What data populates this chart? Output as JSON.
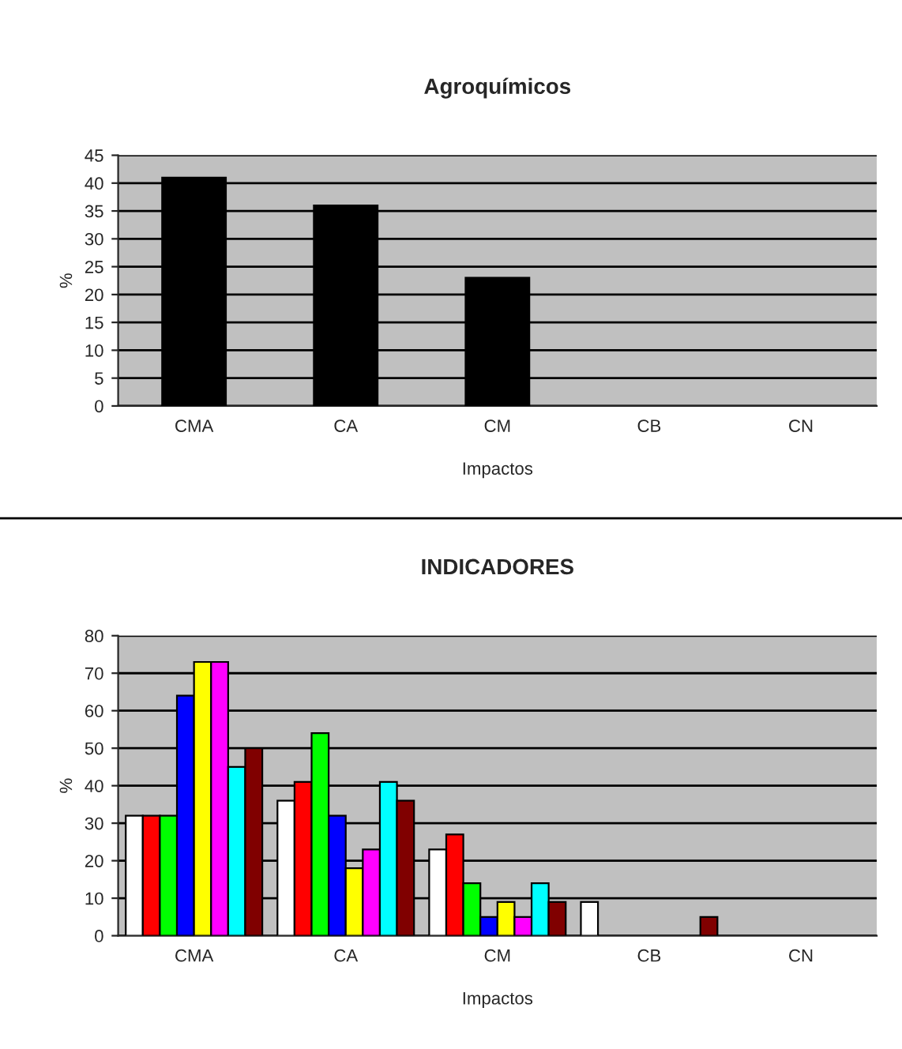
{
  "chart_data": [
    {
      "type": "bar",
      "title": "Agroquímicos",
      "xlabel": "Impactos",
      "ylabel": "%",
      "categories": [
        "CMA",
        "CA",
        "CM",
        "CB",
        "CN"
      ],
      "values": [
        41,
        36,
        23,
        0,
        0
      ],
      "color": "#000000",
      "ylim": [
        0,
        45
      ],
      "yticks": [
        0,
        5,
        10,
        15,
        20,
        25,
        30,
        35,
        40,
        45
      ],
      "grid": "y",
      "legend": false
    },
    {
      "type": "bar",
      "title": "INDICADORES",
      "xlabel": "Impactos",
      "ylabel": "%",
      "categories": [
        "CMA",
        "CA",
        "CM",
        "CB",
        "CN"
      ],
      "ylim": [
        0,
        80
      ],
      "yticks": [
        0,
        10,
        20,
        30,
        40,
        50,
        60,
        70,
        80
      ],
      "grid": "y",
      "legend": false,
      "series": [
        {
          "color": "#ffffff",
          "values": [
            32,
            36,
            23,
            9,
            0
          ]
        },
        {
          "color": "#ff0000",
          "values": [
            32,
            41,
            27,
            0,
            0
          ]
        },
        {
          "color": "#00ff00",
          "values": [
            32,
            54,
            14,
            0,
            0
          ]
        },
        {
          "color": "#0000ff",
          "values": [
            64,
            32,
            5,
            0,
            0
          ]
        },
        {
          "color": "#ffff00",
          "values": [
            73,
            18,
            9,
            0,
            0
          ]
        },
        {
          "color": "#ff00ff",
          "values": [
            73,
            23,
            5,
            0,
            0
          ]
        },
        {
          "color": "#00ffff",
          "values": [
            45,
            41,
            14,
            0,
            0
          ]
        },
        {
          "color": "#800000",
          "values": [
            50,
            36,
            9,
            5,
            0
          ]
        }
      ]
    }
  ]
}
